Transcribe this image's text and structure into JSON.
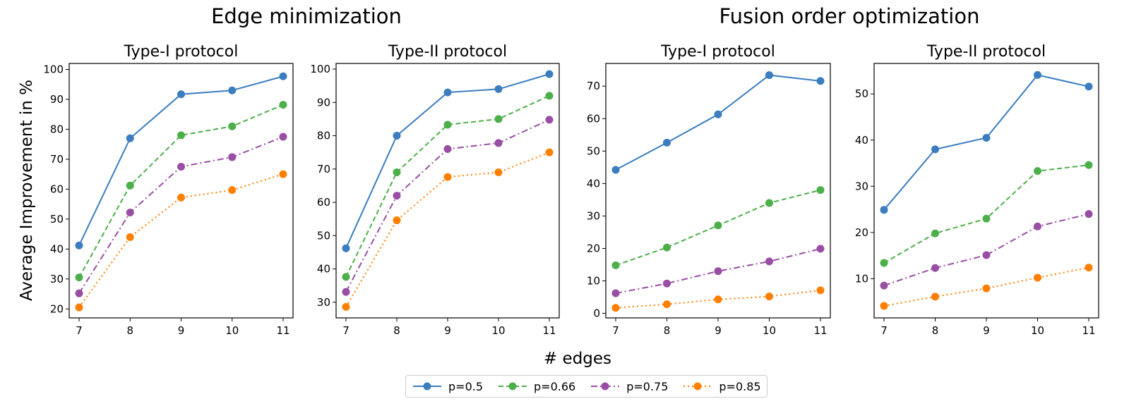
{
  "group_titles": [
    "Edge minimization",
    "Fusion order optimization"
  ],
  "shared_ylabel": "Average Improvement in %",
  "shared_xlabel": "# edges",
  "colors": {
    "p=0.5": "#3b7dbf",
    "p=0.66": "#4daf4a",
    "p=0.75": "#984ea3",
    "p=0.85": "#ff7f00"
  },
  "legend": [
    {
      "label": "p=0.5",
      "dash": "solid"
    },
    {
      "label": "p=0.66",
      "dash": "dashed"
    },
    {
      "label": "p=0.75",
      "dash": "dashdot"
    },
    {
      "label": "p=0.85",
      "dash": "dotted"
    }
  ],
  "chart_data": [
    {
      "type": "line",
      "group": "Edge minimization",
      "title": "Type-I protocol",
      "x": [
        7,
        8,
        9,
        10,
        11
      ],
      "xticks": [
        7,
        8,
        9,
        10,
        11
      ],
      "ylim": [
        17,
        102
      ],
      "yticks": [
        20,
        30,
        40,
        50,
        60,
        70,
        80,
        90,
        100
      ],
      "series": [
        {
          "name": "p=0.5",
          "values": [
            41.2,
            77,
            91.7,
            93,
            97.7
          ]
        },
        {
          "name": "p=0.66",
          "values": [
            30.5,
            61.2,
            78,
            81,
            88.2
          ]
        },
        {
          "name": "p=0.75",
          "values": [
            25.2,
            52.2,
            67.5,
            70.7,
            77.5
          ]
        },
        {
          "name": "p=0.85",
          "values": [
            20.5,
            44,
            57.2,
            59.7,
            65
          ]
        }
      ]
    },
    {
      "type": "line",
      "group": "Edge minimization",
      "title": "Type-II protocol",
      "x": [
        7,
        8,
        9,
        10,
        11
      ],
      "xticks": [
        7,
        8,
        9,
        10,
        11
      ],
      "ylim": [
        25.3,
        101.7
      ],
      "yticks": [
        30,
        40,
        50,
        60,
        70,
        80,
        90,
        100
      ],
      "series": [
        {
          "name": "p=0.5",
          "values": [
            46.2,
            80,
            93,
            94,
            98.5
          ]
        },
        {
          "name": "p=0.66",
          "values": [
            37.6,
            69,
            83.3,
            85,
            92
          ]
        },
        {
          "name": "p=0.75",
          "values": [
            33.1,
            62,
            76,
            77.8,
            84.8
          ]
        },
        {
          "name": "p=0.85",
          "values": [
            28.6,
            54.6,
            67.6,
            69,
            75
          ]
        }
      ]
    },
    {
      "type": "line",
      "group": "Fusion order optimization",
      "title": "Type-I protocol",
      "x": [
        7,
        8,
        9,
        10,
        11
      ],
      "xticks": [
        7,
        8,
        9,
        10,
        11
      ],
      "ylim": [
        -1.4,
        77
      ],
      "yticks": [
        0,
        10,
        20,
        30,
        40,
        50,
        60,
        70
      ],
      "series": [
        {
          "name": "p=0.5",
          "values": [
            44.2,
            52.6,
            61.3,
            73.4,
            71.6
          ]
        },
        {
          "name": "p=0.66",
          "values": [
            14.8,
            20.3,
            27.1,
            34,
            38
          ]
        },
        {
          "name": "p=0.75",
          "values": [
            6.2,
            9.2,
            13,
            16,
            19.9
          ]
        },
        {
          "name": "p=0.85",
          "values": [
            1.7,
            2.8,
            4.3,
            5.2,
            7.1
          ]
        }
      ]
    },
    {
      "type": "line",
      "group": "Fusion order optimization",
      "title": "Type-II protocol",
      "x": [
        7,
        8,
        9,
        10,
        11
      ],
      "xticks": [
        7,
        8,
        9,
        10,
        11
      ],
      "ylim": [
        1.5,
        56.6
      ],
      "yticks": [
        10,
        20,
        30,
        40,
        50
      ],
      "series": [
        {
          "name": "p=0.5",
          "values": [
            24.9,
            38,
            40.5,
            54.1,
            51.6
          ]
        },
        {
          "name": "p=0.66",
          "values": [
            13.4,
            19.8,
            23,
            33.3,
            34.6
          ]
        },
        {
          "name": "p=0.75",
          "values": [
            8.5,
            12.3,
            15.1,
            21.3,
            24
          ]
        },
        {
          "name": "p=0.85",
          "values": [
            4.1,
            6.1,
            7.9,
            10.2,
            12.4
          ]
        }
      ]
    }
  ]
}
